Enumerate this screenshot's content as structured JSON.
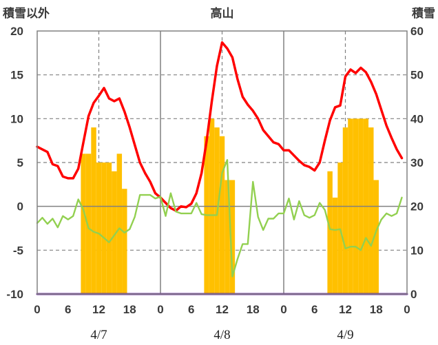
{
  "chart_data": {
    "type": "bar+line",
    "title": "高山",
    "ylabel_left": "積雪以外",
    "ylabel_right": "積雪",
    "y_left": {
      "ticks": [
        20,
        15,
        10,
        5,
        0,
        -5,
        -10
      ],
      "ylim": [
        -10,
        20
      ]
    },
    "y_right": {
      "ticks": [
        60,
        50,
        40,
        30,
        20,
        10,
        0
      ],
      "ylim": [
        0,
        60
      ]
    },
    "x": {
      "range": [
        0,
        72
      ],
      "tick_values": [
        0,
        6,
        12,
        18,
        24,
        30,
        36,
        42,
        48,
        54,
        60,
        66,
        72
      ],
      "tick_labels": [
        "0",
        "6",
        "12",
        "18",
        "0",
        "6",
        "12",
        "18",
        "0",
        "6",
        "12",
        "18",
        "0"
      ]
    },
    "dates": [
      {
        "label": "4/7",
        "x": 12
      },
      {
        "label": "4/8",
        "x": 36
      },
      {
        "label": "4/9",
        "x": 60
      }
    ],
    "grid": {
      "solid_x": [
        24,
        48
      ],
      "dashed_x": [
        12,
        36,
        60
      ],
      "dashed_y_left": [
        15,
        10,
        5,
        -5
      ]
    },
    "colors": {
      "bars": "#ffc000",
      "red_line": "#ff0000",
      "green_line": "#92d050",
      "purple_line": "#7030a0",
      "zero_line": "#808080",
      "grid": "#808080"
    },
    "series": [
      {
        "kind": "bar",
        "axis": "right",
        "x": [
          9,
          10,
          11,
          12,
          13,
          14,
          15,
          16,
          17,
          33,
          34,
          35,
          36,
          37,
          38,
          57,
          58,
          59,
          60,
          61,
          62,
          63,
          64,
          65,
          66
        ],
        "values": [
          32,
          32,
          38,
          30,
          30,
          30,
          28,
          32,
          24,
          36,
          40,
          38,
          36,
          26,
          26,
          28,
          22,
          30,
          38,
          40,
          40,
          40,
          40,
          38,
          26
        ]
      },
      {
        "kind": "line",
        "axis": "left",
        "color": "#ff0000",
        "x": [
          0,
          1,
          2,
          3,
          4,
          5,
          6,
          7,
          8,
          9,
          10,
          11,
          12,
          13,
          14,
          15,
          16,
          17,
          18,
          19,
          20,
          21,
          22,
          23,
          24,
          25,
          26,
          27,
          28,
          29,
          30,
          31,
          32,
          33,
          34,
          35,
          36,
          37,
          38,
          39,
          40,
          41,
          42,
          43,
          44,
          45,
          46,
          47,
          48,
          49,
          50,
          51,
          52,
          53,
          54,
          55,
          56,
          57,
          58,
          59,
          60,
          61,
          62,
          63,
          64,
          65,
          66,
          67,
          68,
          69,
          70,
          71
        ],
        "values": [
          6.8,
          6.5,
          6.2,
          4.8,
          4.6,
          3.4,
          3.2,
          3.2,
          4.3,
          7.3,
          10.3,
          11.8,
          12.6,
          13.5,
          12.3,
          12.0,
          12.3,
          10.8,
          9.0,
          7.0,
          5.0,
          3.8,
          2.8,
          1.5,
          1.0,
          0.4,
          -0.2,
          -0.5,
          0.0,
          -0.1,
          0.3,
          1.5,
          3.8,
          7.5,
          12.0,
          16.0,
          18.7,
          18.0,
          17.0,
          14.5,
          12.5,
          11.6,
          10.9,
          10.0,
          8.7,
          8.0,
          7.3,
          7.1,
          6.4,
          6.4,
          5.8,
          5.2,
          4.7,
          4.5,
          4.1,
          5.0,
          7.5,
          9.8,
          11.3,
          11.5,
          14.8,
          15.6,
          15.2,
          15.8,
          15.3,
          14.2,
          12.8,
          11.0,
          9.2,
          7.8,
          6.5,
          5.5
        ]
      },
      {
        "kind": "line",
        "axis": "left",
        "color": "#92d050",
        "x": [
          0,
          1,
          2,
          3,
          4,
          5,
          6,
          7,
          8,
          9,
          10,
          11,
          12,
          13,
          14,
          15,
          16,
          17,
          18,
          19,
          20,
          21,
          22,
          23,
          24,
          25,
          26,
          27,
          28,
          29,
          30,
          31,
          32,
          33,
          34,
          35,
          36,
          37,
          38,
          39,
          40,
          41,
          42,
          43,
          44,
          45,
          46,
          47,
          48,
          49,
          50,
          51,
          52,
          53,
          54,
          55,
          56,
          57,
          58,
          59,
          60,
          61,
          62,
          63,
          64,
          65,
          66,
          67,
          68,
          69,
          70,
          71
        ],
        "values": [
          -1.9,
          -1.3,
          -2.0,
          -1.4,
          -2.4,
          -1.1,
          -1.5,
          -1.1,
          0.8,
          -0.4,
          -2.5,
          -2.9,
          -3.1,
          -3.6,
          -4.1,
          -3.3,
          -2.5,
          -3.0,
          -2.6,
          -1.2,
          1.3,
          1.3,
          1.3,
          0.9,
          1.1,
          -1.1,
          1.5,
          -0.6,
          -0.8,
          -0.8,
          -0.8,
          0.4,
          -0.9,
          -1.0,
          -1.0,
          -1.0,
          3.8,
          5.3,
          -8.0,
          -6.0,
          -4.3,
          -4.3,
          2.8,
          -1.2,
          -2.7,
          -1.4,
          -1.4,
          -0.8,
          -0.8,
          0.9,
          -1.5,
          0.6,
          -1.0,
          -1.3,
          -1.0,
          0.4,
          -0.4,
          -2.6,
          -2.7,
          -2.6,
          -4.8,
          -4.6,
          -4.6,
          -5.0,
          -3.6,
          -4.5,
          -2.8,
          -1.5,
          -0.8,
          -1.1,
          -0.8,
          1.0
        ]
      },
      {
        "kind": "line",
        "axis": "left",
        "color": "#7030a0",
        "x": [
          0,
          72
        ],
        "values": [
          -10,
          -10
        ]
      }
    ]
  }
}
